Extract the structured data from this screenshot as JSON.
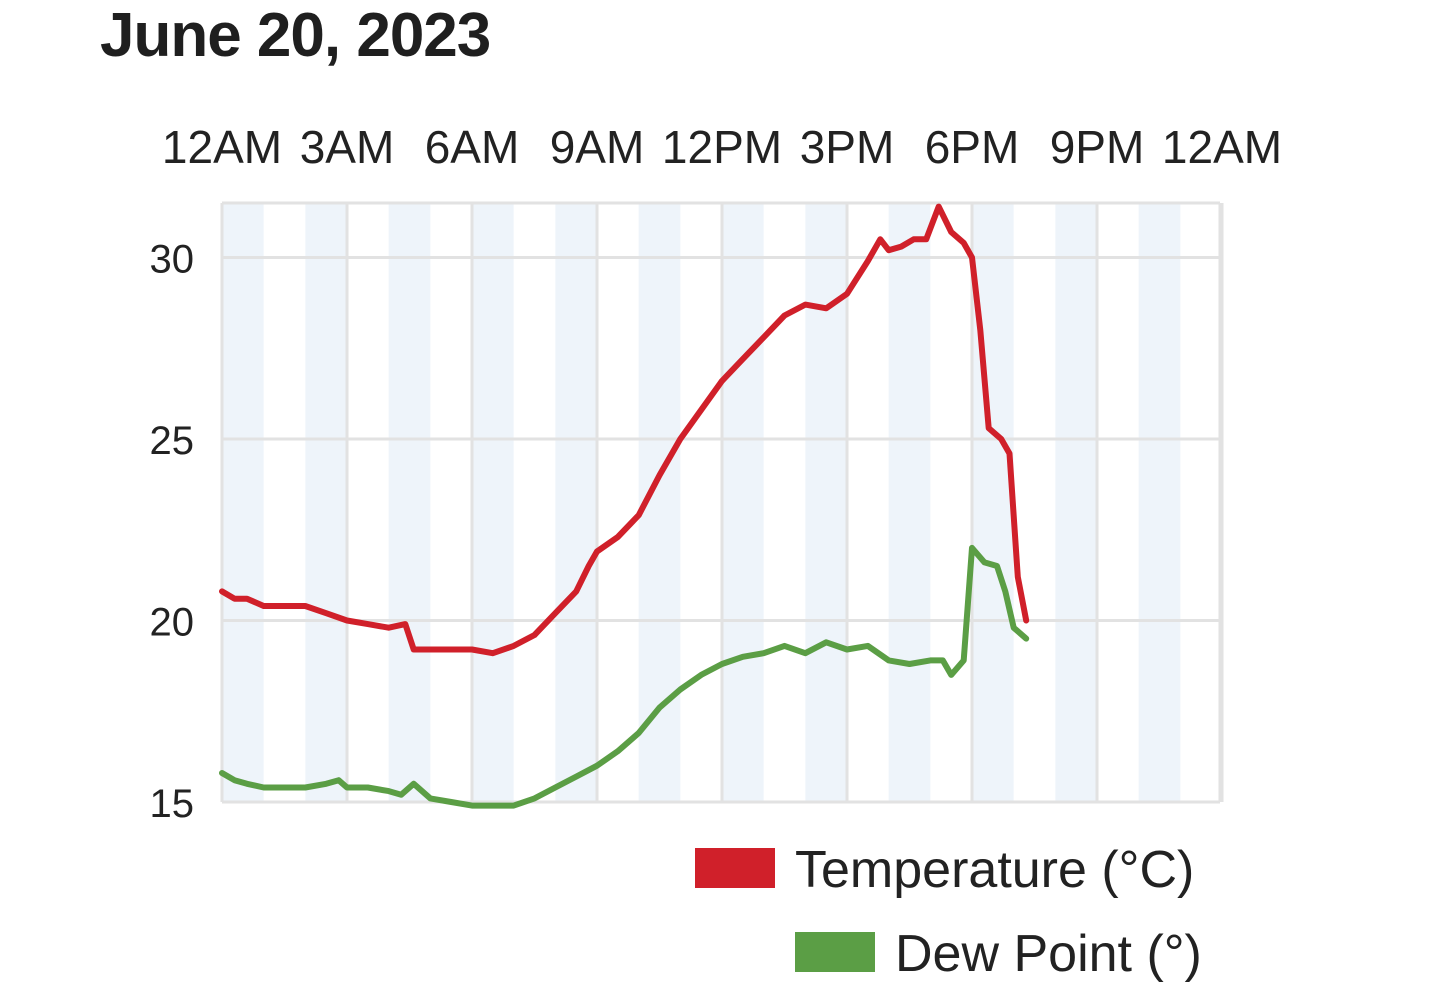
{
  "chart_data": {
    "type": "line",
    "title": "June 20, 2023",
    "x_tick_labels": [
      "12AM",
      "3AM",
      "6AM",
      "9AM",
      "12PM",
      "3PM",
      "6PM",
      "9PM",
      "12AM"
    ],
    "xlim_hours": [
      0,
      24
    ],
    "ylim": [
      15,
      31.5
    ],
    "y_ticks": [
      15,
      20,
      25,
      30
    ],
    "grid": true,
    "legend_position": "bottom-right",
    "series": [
      {
        "name": "Temperature (°C)",
        "color": "#d0202a",
        "points": [
          [
            0.0,
            20.8
          ],
          [
            0.3,
            20.6
          ],
          [
            0.6,
            20.6
          ],
          [
            1.0,
            20.4
          ],
          [
            1.5,
            20.4
          ],
          [
            2.0,
            20.4
          ],
          [
            2.5,
            20.2
          ],
          [
            3.0,
            20.0
          ],
          [
            3.5,
            19.9
          ],
          [
            4.0,
            19.8
          ],
          [
            4.4,
            19.9
          ],
          [
            4.6,
            19.2
          ],
          [
            5.0,
            19.2
          ],
          [
            5.5,
            19.2
          ],
          [
            6.0,
            19.2
          ],
          [
            6.5,
            19.1
          ],
          [
            7.0,
            19.3
          ],
          [
            7.5,
            19.6
          ],
          [
            8.0,
            20.2
          ],
          [
            8.5,
            20.8
          ],
          [
            8.8,
            21.5
          ],
          [
            9.0,
            21.9
          ],
          [
            9.5,
            22.3
          ],
          [
            10.0,
            22.9
          ],
          [
            10.5,
            24.0
          ],
          [
            11.0,
            25.0
          ],
          [
            11.5,
            25.8
          ],
          [
            12.0,
            26.6
          ],
          [
            12.5,
            27.2
          ],
          [
            13.0,
            27.8
          ],
          [
            13.5,
            28.4
          ],
          [
            14.0,
            28.7
          ],
          [
            14.5,
            28.6
          ],
          [
            15.0,
            29.0
          ],
          [
            15.5,
            29.9
          ],
          [
            15.8,
            30.5
          ],
          [
            16.0,
            30.2
          ],
          [
            16.3,
            30.3
          ],
          [
            16.6,
            30.5
          ],
          [
            16.9,
            30.5
          ],
          [
            17.2,
            31.4
          ],
          [
            17.5,
            30.7
          ],
          [
            17.8,
            30.4
          ],
          [
            18.0,
            30.0
          ],
          [
            18.2,
            28.0
          ],
          [
            18.4,
            25.3
          ],
          [
            18.7,
            25.0
          ],
          [
            18.9,
            24.6
          ],
          [
            19.1,
            21.2
          ],
          [
            19.3,
            20.0
          ]
        ]
      },
      {
        "name": "Dew Point (°)",
        "color": "#5b9e45",
        "points": [
          [
            0.0,
            15.8
          ],
          [
            0.3,
            15.6
          ],
          [
            0.6,
            15.5
          ],
          [
            1.0,
            15.4
          ],
          [
            1.5,
            15.4
          ],
          [
            2.0,
            15.4
          ],
          [
            2.5,
            15.5
          ],
          [
            2.8,
            15.6
          ],
          [
            3.0,
            15.4
          ],
          [
            3.5,
            15.4
          ],
          [
            4.0,
            15.3
          ],
          [
            4.3,
            15.2
          ],
          [
            4.6,
            15.5
          ],
          [
            5.0,
            15.1
          ],
          [
            5.5,
            15.0
          ],
          [
            6.0,
            14.9
          ],
          [
            6.5,
            14.9
          ],
          [
            7.0,
            14.9
          ],
          [
            7.5,
            15.1
          ],
          [
            8.0,
            15.4
          ],
          [
            8.5,
            15.7
          ],
          [
            9.0,
            16.0
          ],
          [
            9.5,
            16.4
          ],
          [
            10.0,
            16.9
          ],
          [
            10.5,
            17.6
          ],
          [
            11.0,
            18.1
          ],
          [
            11.5,
            18.5
          ],
          [
            12.0,
            18.8
          ],
          [
            12.5,
            19.0
          ],
          [
            13.0,
            19.1
          ],
          [
            13.5,
            19.3
          ],
          [
            14.0,
            19.1
          ],
          [
            14.5,
            19.4
          ],
          [
            15.0,
            19.2
          ],
          [
            15.5,
            19.3
          ],
          [
            16.0,
            18.9
          ],
          [
            16.5,
            18.8
          ],
          [
            17.0,
            18.9
          ],
          [
            17.3,
            18.9
          ],
          [
            17.5,
            18.5
          ],
          [
            17.8,
            18.9
          ],
          [
            18.0,
            22.0
          ],
          [
            18.3,
            21.6
          ],
          [
            18.6,
            21.5
          ],
          [
            18.8,
            20.8
          ],
          [
            19.0,
            19.8
          ],
          [
            19.3,
            19.5
          ]
        ]
      }
    ]
  }
}
